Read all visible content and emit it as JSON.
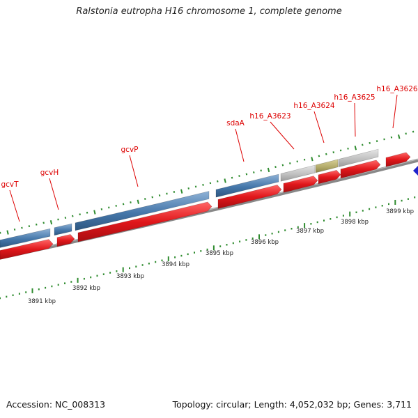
{
  "title": "Ralstonia eutropha H16 chromosome 1, complete genome",
  "footer": {
    "accession": "Accession: NC_008313",
    "topology": "Topology: circular; Length: 4,052,032 bp; Genes: 3,711"
  },
  "colors": {
    "gene_label": "#dd0000",
    "cds": "#e0171b",
    "blue_feature": "#4577aa",
    "gray_feature": "#bdbdbd",
    "olive_feature": "#b0a868",
    "backbone": "#888888",
    "tick_green": "#2e8b2e",
    "arrow_blue": "#1e22cc"
  },
  "scale_ticks": [
    "3891 kbp",
    "3892 kbp",
    "3893 kbp",
    "3894 kbp",
    "3895 kbp",
    "3896 kbp",
    "3897 kbp",
    "3898 kbp",
    "3899 kbp"
  ],
  "genes": [
    {
      "id": "gcvT",
      "label": "gcvT"
    },
    {
      "id": "gcvH",
      "label": "gcvH"
    },
    {
      "id": "gcvP",
      "label": "gcvP"
    },
    {
      "id": "sdaA",
      "label": "sdaA"
    },
    {
      "id": "h16_A3623",
      "label": "h16_A3623"
    },
    {
      "id": "h16_A3624",
      "label": "h16_A3624"
    },
    {
      "id": "h16_A3625",
      "label": "h16_A3625"
    },
    {
      "id": "h16_A3626",
      "label": "h16_A3626"
    }
  ]
}
